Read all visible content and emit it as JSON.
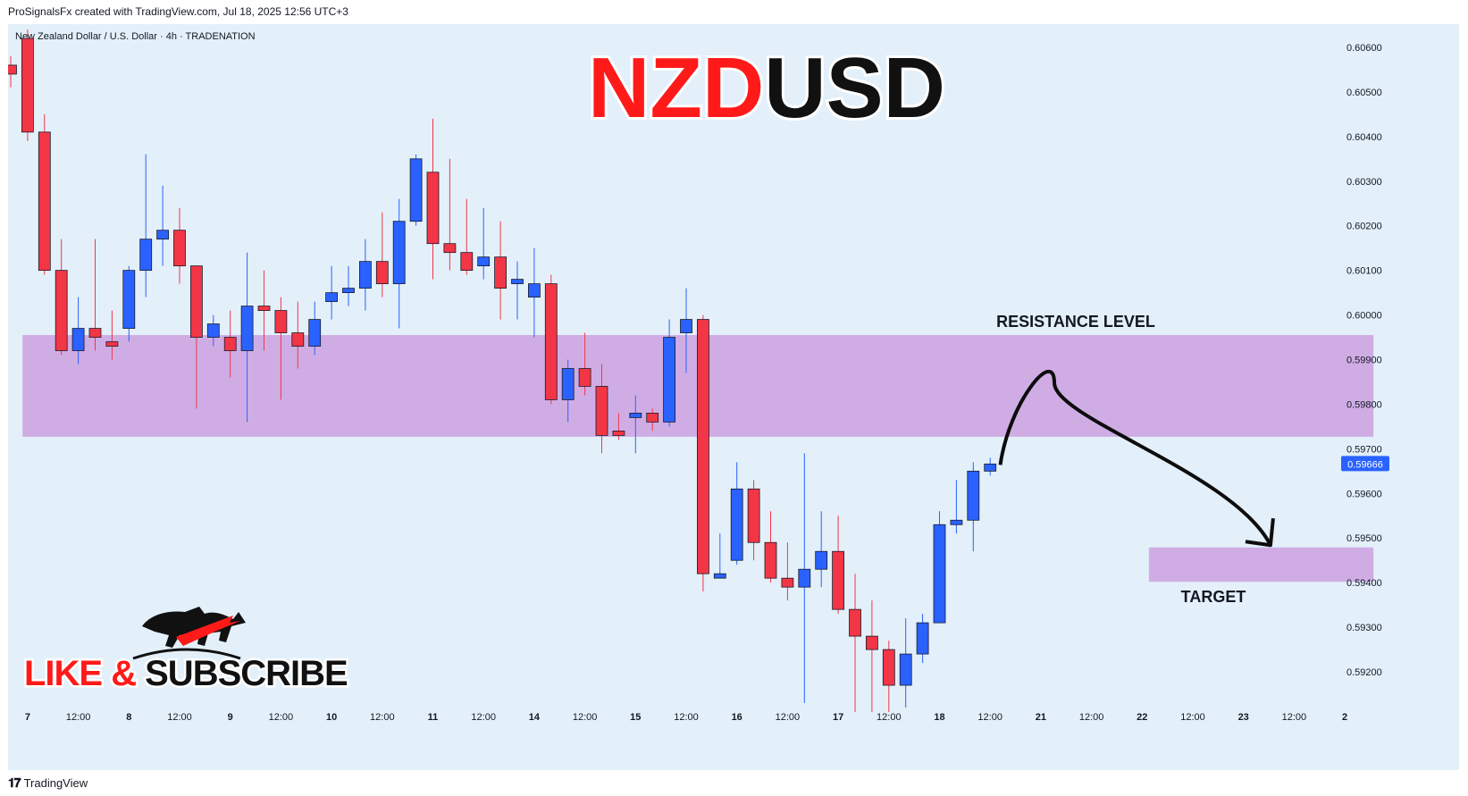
{
  "caption": "ProSignalsFx created with TradingView.com, Jul 18, 2025 12:56 UTC+3",
  "footer": {
    "brand": "TradingView",
    "logo_icon": "tradingview-logo-icon"
  },
  "colors": {
    "background": "#e3f0fa",
    "up_candle": "#2962ff",
    "down_candle": "#f23645",
    "zone": "#cda9e3",
    "title_red": "#ff1a1a",
    "title_black": "#111111",
    "price_badge": "#2962ff"
  },
  "chart_data": {
    "type": "candlestick",
    "symbol_info": "New Zealand Dollar / U.S. Dollar · 4h · TRADENATION",
    "title_parts": [
      "NZD",
      "USD"
    ],
    "y_ticks": [
      "0.60600",
      "0.60500",
      "0.60400",
      "0.60300",
      "0.60200",
      "0.60100",
      "0.60000",
      "0.59900",
      "0.59800",
      "0.59700",
      "0.59600",
      "0.59500",
      "0.59400",
      "0.59300",
      "0.59200"
    ],
    "ylim": [
      0.5913,
      0.6065
    ],
    "x_ticks": [
      {
        "label": "7",
        "bold": true,
        "bar": 1
      },
      {
        "label": "12:00",
        "bar": 4
      },
      {
        "label": "8",
        "bold": true,
        "bar": 7
      },
      {
        "label": "12:00",
        "bar": 10
      },
      {
        "label": "9",
        "bold": true,
        "bar": 13
      },
      {
        "label": "12:00",
        "bar": 16
      },
      {
        "label": "10",
        "bold": true,
        "bar": 19
      },
      {
        "label": "12:00",
        "bar": 22
      },
      {
        "label": "11",
        "bold": true,
        "bar": 25
      },
      {
        "label": "12:00",
        "bar": 28
      },
      {
        "label": "14",
        "bold": true,
        "bar": 31
      },
      {
        "label": "12:00",
        "bar": 34
      },
      {
        "label": "15",
        "bold": true,
        "bar": 37
      },
      {
        "label": "12:00",
        "bar": 40
      },
      {
        "label": "16",
        "bold": true,
        "bar": 43
      },
      {
        "label": "12:00",
        "bar": 46
      },
      {
        "label": "17",
        "bold": true,
        "bar": 49
      },
      {
        "label": "12:00",
        "bar": 52
      },
      {
        "label": "18",
        "bold": true,
        "bar": 55
      },
      {
        "label": "12:00",
        "bar": 58
      },
      {
        "label": "21",
        "bold": true,
        "bar": 61
      },
      {
        "label": "12:00",
        "bar": 64
      },
      {
        "label": "22",
        "bold": true,
        "bar": 67
      },
      {
        "label": "12:00",
        "bar": 70
      },
      {
        "label": "23",
        "bold": true,
        "bar": 73
      },
      {
        "label": "12:00",
        "bar": 76
      },
      {
        "label": "2",
        "bold": true,
        "bar": 79
      }
    ],
    "candles": [
      [
        0.6056,
        0.6058,
        0.6051,
        0.6054
      ],
      [
        0.6062,
        0.6064,
        0.6039,
        0.6041
      ],
      [
        0.6041,
        0.6045,
        0.6009,
        0.601
      ],
      [
        0.601,
        0.6017,
        0.5991,
        0.5992
      ],
      [
        0.5992,
        0.6004,
        0.5989,
        0.5997
      ],
      [
        0.5997,
        0.6017,
        0.5992,
        0.5995
      ],
      [
        0.5994,
        0.6001,
        0.599,
        0.5993
      ],
      [
        0.5997,
        0.6011,
        0.5994,
        0.601
      ],
      [
        0.601,
        0.6036,
        0.6004,
        0.6017
      ],
      [
        0.6017,
        0.6029,
        0.6011,
        0.6019
      ],
      [
        0.6019,
        0.6024,
        0.6007,
        0.6011
      ],
      [
        0.6011,
        0.6011,
        0.5979,
        0.5995
      ],
      [
        0.5995,
        0.6,
        0.5993,
        0.5998
      ],
      [
        0.5995,
        0.6001,
        0.5986,
        0.5992
      ],
      [
        0.5992,
        0.6014,
        0.5976,
        0.6002
      ],
      [
        0.6002,
        0.601,
        0.5992,
        0.6001
      ],
      [
        0.6001,
        0.6004,
        0.5981,
        0.5996
      ],
      [
        0.5996,
        0.6003,
        0.5988,
        0.5993
      ],
      [
        0.5993,
        0.6003,
        0.5991,
        0.5999
      ],
      [
        0.6003,
        0.6011,
        0.5999,
        0.6005
      ],
      [
        0.6005,
        0.6011,
        0.6002,
        0.6006
      ],
      [
        0.6006,
        0.6017,
        0.6001,
        0.6012
      ],
      [
        0.6012,
        0.6023,
        0.6004,
        0.6007
      ],
      [
        0.6007,
        0.6026,
        0.5997,
        0.6021
      ],
      [
        0.6021,
        0.6036,
        0.602,
        0.6035
      ],
      [
        0.6032,
        0.6044,
        0.6008,
        0.6016
      ],
      [
        0.6016,
        0.6035,
        0.601,
        0.6014
      ],
      [
        0.6014,
        0.6026,
        0.6009,
        0.601
      ],
      [
        0.6011,
        0.6024,
        0.6008,
        0.6013
      ],
      [
        0.6013,
        0.6021,
        0.5999,
        0.6006
      ],
      [
        0.6007,
        0.6012,
        0.5999,
        0.6008
      ],
      [
        0.6004,
        0.6015,
        0.5995,
        0.6007
      ],
      [
        0.6007,
        0.6009,
        0.598,
        0.5981
      ],
      [
        0.5981,
        0.599,
        0.5976,
        0.5988
      ],
      [
        0.5988,
        0.5996,
        0.5982,
        0.5984
      ],
      [
        0.5984,
        0.5989,
        0.5969,
        0.5973
      ],
      [
        0.5974,
        0.5978,
        0.5972,
        0.5973
      ],
      [
        0.5977,
        0.5982,
        0.5969,
        0.5978
      ],
      [
        0.5978,
        0.5979,
        0.5974,
        0.5976
      ],
      [
        0.5976,
        0.5999,
        0.5975,
        0.5995
      ],
      [
        0.5996,
        0.6006,
        0.5987,
        0.5999
      ],
      [
        0.5999,
        0.6,
        0.5938,
        0.5942
      ],
      [
        0.5941,
        0.5951,
        0.5941,
        0.5942
      ],
      [
        0.5945,
        0.5967,
        0.5944,
        0.5961
      ],
      [
        0.5961,
        0.5963,
        0.5945,
        0.5949
      ],
      [
        0.5949,
        0.5956,
        0.594,
        0.5941
      ],
      [
        0.5941,
        0.5949,
        0.5936,
        0.5939
      ],
      [
        0.5939,
        0.5969,
        0.5913,
        0.5943
      ],
      [
        0.5943,
        0.5956,
        0.5939,
        0.5947
      ],
      [
        0.5947,
        0.5955,
        0.5933,
        0.5934
      ],
      [
        0.5934,
        0.5942,
        0.5911,
        0.5928
      ],
      [
        0.5928,
        0.5936,
        0.5911,
        0.5925
      ],
      [
        0.5925,
        0.5927,
        0.5911,
        0.5917
      ],
      [
        0.5917,
        0.5932,
        0.5912,
        0.5924
      ],
      [
        0.5924,
        0.5933,
        0.5922,
        0.5931
      ],
      [
        0.5931,
        0.5956,
        0.5931,
        0.5953
      ],
      [
        0.5953,
        0.5963,
        0.5951,
        0.5954
      ],
      [
        0.5954,
        0.5967,
        0.5947,
        0.5965
      ],
      [
        0.5965,
        0.5968,
        0.5964,
        0.59666
      ]
    ],
    "current_price": "0.59666",
    "current_price_value": 0.59666,
    "zones": [
      {
        "label": "RESISTANCE LEVEL",
        "from": 0.59727,
        "to": 0.59955,
        "bar_start": 0.7,
        "bar_end": 80.7
      },
      {
        "label": "TARGET",
        "from": 0.59402,
        "to": 0.59479,
        "bar_start": 67.4,
        "bar_end": 80.7
      }
    ],
    "projection": {
      "points": [
        [
          58.6,
          0.59664
        ],
        [
          61.8,
          0.59848
        ],
        [
          74.6,
          0.59484
        ]
      ],
      "direction": "down"
    },
    "grid": false,
    "legend": "none"
  },
  "logo": {
    "text_red": "LIKE &",
    "text_black": "SUBSCRIBE",
    "icon": "bull-bear-logo-icon"
  }
}
